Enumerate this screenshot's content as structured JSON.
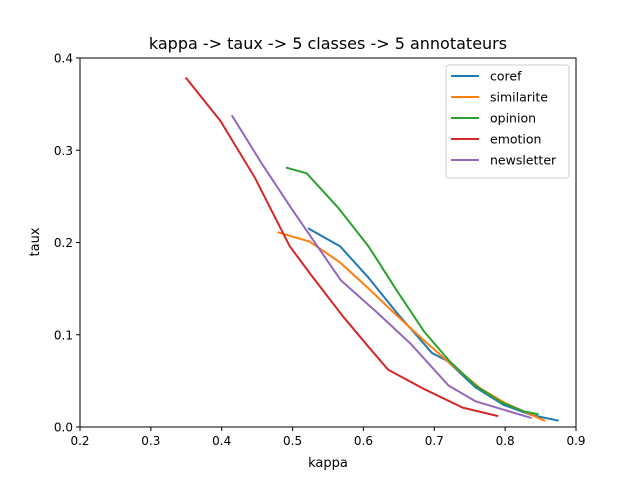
{
  "chart_data": {
    "type": "line",
    "title": "kappa -> taux -> 5 classes -> 5 annotateurs",
    "xlabel": "kappa",
    "ylabel": "taux",
    "xlim": [
      0.2,
      0.9
    ],
    "ylim": [
      0.0,
      0.4
    ],
    "xticks": [
      "0.2",
      "0.3",
      "0.4",
      "0.5",
      "0.6",
      "0.7",
      "0.8",
      "0.9"
    ],
    "yticks": [
      "0.0",
      "0.1",
      "0.2",
      "0.3",
      "0.4"
    ],
    "grid": false,
    "legend_position": "top-right",
    "series": [
      {
        "name": "coref",
        "color": "#1f77b4",
        "points": [
          [
            0.523,
            0.215
          ],
          [
            0.567,
            0.196
          ],
          [
            0.607,
            0.162
          ],
          [
            0.648,
            0.123
          ],
          [
            0.697,
            0.08
          ],
          [
            0.718,
            0.072
          ],
          [
            0.758,
            0.043
          ],
          [
            0.798,
            0.024
          ],
          [
            0.837,
            0.013
          ],
          [
            0.874,
            0.007
          ]
        ]
      },
      {
        "name": "similarite",
        "color": "#ff7f0e",
        "points": [
          [
            0.48,
            0.211
          ],
          [
            0.524,
            0.201
          ],
          [
            0.566,
            0.179
          ],
          [
            0.606,
            0.151
          ],
          [
            0.647,
            0.121
          ],
          [
            0.688,
            0.092
          ],
          [
            0.727,
            0.066
          ],
          [
            0.765,
            0.042
          ],
          [
            0.8,
            0.026
          ],
          [
            0.832,
            0.015
          ],
          [
            0.855,
            0.007
          ]
        ]
      },
      {
        "name": "opinion",
        "color": "#2ca02c",
        "points": [
          [
            0.492,
            0.281
          ],
          [
            0.52,
            0.275
          ],
          [
            0.564,
            0.238
          ],
          [
            0.607,
            0.196
          ],
          [
            0.648,
            0.147
          ],
          [
            0.686,
            0.103
          ],
          [
            0.722,
            0.071
          ],
          [
            0.758,
            0.045
          ],
          [
            0.794,
            0.027
          ],
          [
            0.826,
            0.017
          ],
          [
            0.846,
            0.014
          ]
        ]
      },
      {
        "name": "emotion",
        "color": "#d62728",
        "points": [
          [
            0.35,
            0.378
          ],
          [
            0.398,
            0.332
          ],
          [
            0.447,
            0.27
          ],
          [
            0.496,
            0.196
          ],
          [
            0.529,
            0.162
          ],
          [
            0.571,
            0.12
          ],
          [
            0.607,
            0.087
          ],
          [
            0.635,
            0.062
          ],
          [
            0.686,
            0.041
          ],
          [
            0.74,
            0.021
          ],
          [
            0.789,
            0.012
          ]
        ]
      },
      {
        "name": "newsletter",
        "color": "#9467bd",
        "points": [
          [
            0.415,
            0.337
          ],
          [
            0.457,
            0.285
          ],
          [
            0.5,
            0.235
          ],
          [
            0.527,
            0.205
          ],
          [
            0.568,
            0.159
          ],
          [
            0.618,
            0.125
          ],
          [
            0.667,
            0.09
          ],
          [
            0.72,
            0.045
          ],
          [
            0.758,
            0.028
          ],
          [
            0.801,
            0.018
          ],
          [
            0.836,
            0.01
          ]
        ]
      }
    ]
  }
}
